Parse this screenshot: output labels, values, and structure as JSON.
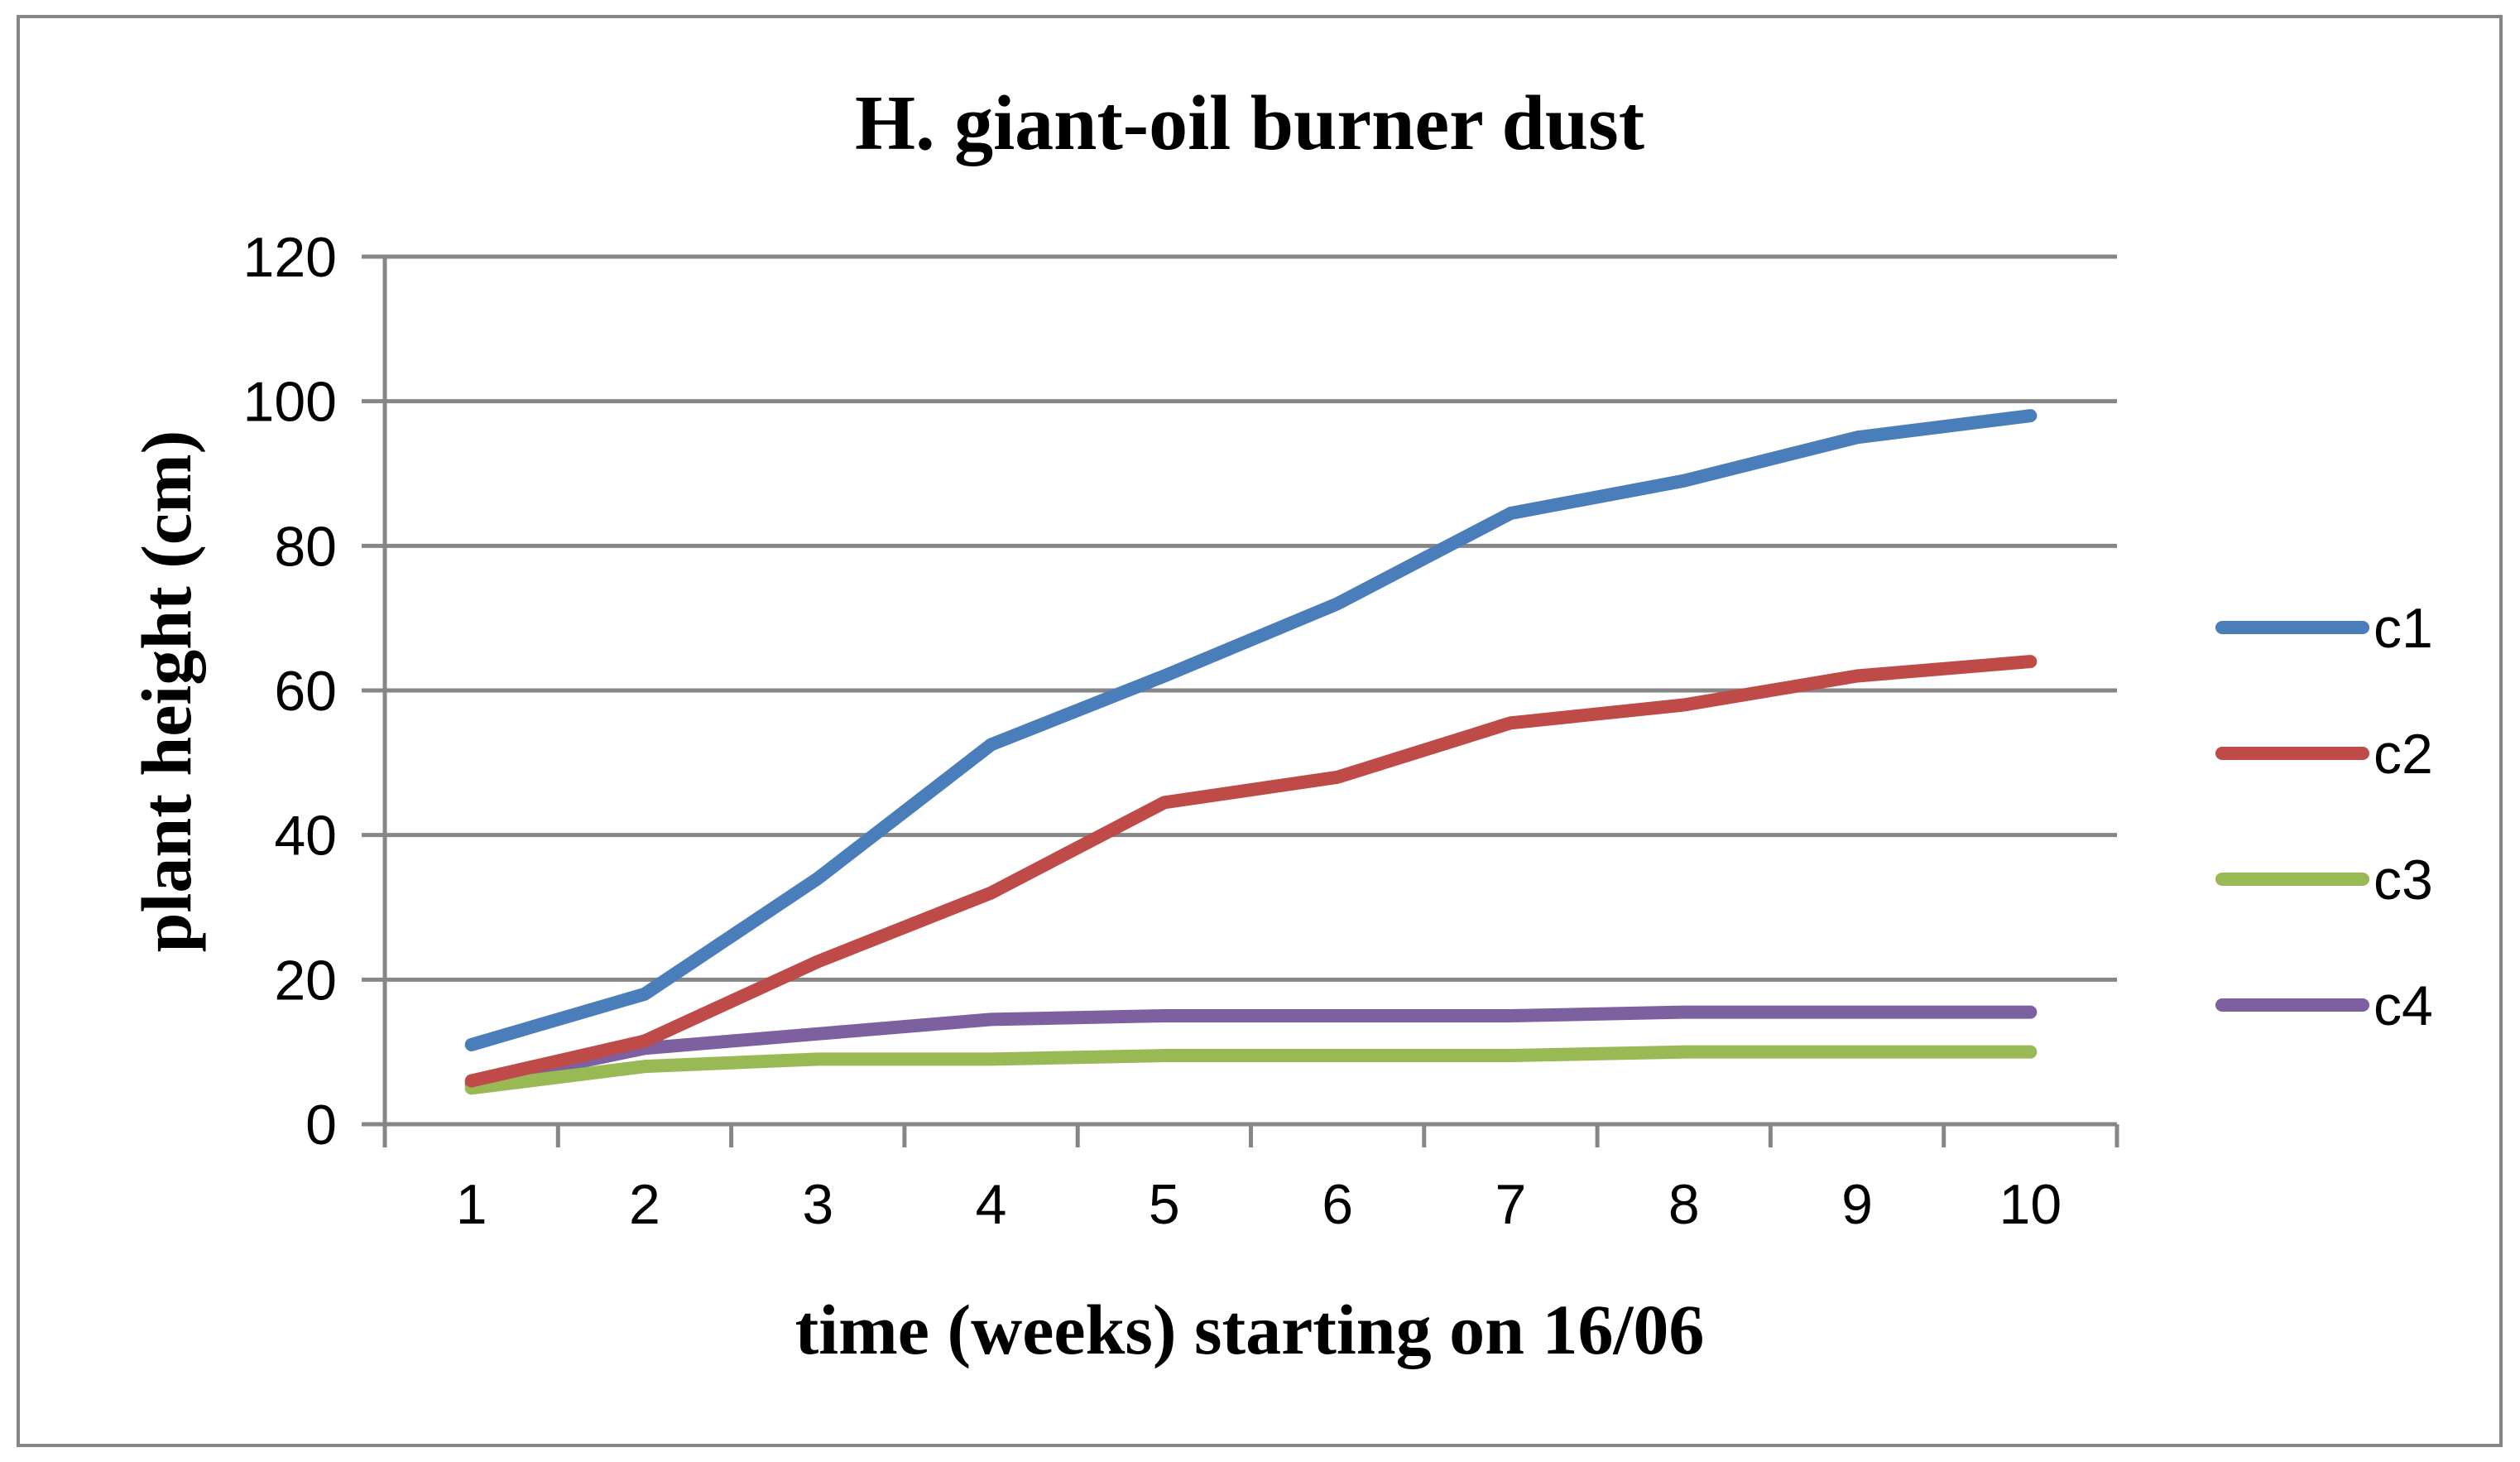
{
  "chart_data": {
    "type": "line",
    "title": "H. giant-oil burner dust",
    "xlabel": "time (weeks) starting on 16/06",
    "ylabel": "plant height (cm)",
    "categories": [
      "1",
      "2",
      "3",
      "4",
      "5",
      "6",
      "7",
      "8",
      "9",
      "10"
    ],
    "ylim": [
      0,
      120
    ],
    "yticks": [
      0,
      20,
      40,
      60,
      80,
      100,
      120
    ],
    "grid": true,
    "legend_position": "right",
    "series": [
      {
        "name": "c1",
        "color": "#4a7ebb",
        "values": [
          11,
          18,
          34,
          52.5,
          62,
          72,
          84.5,
          89,
          95,
          98
        ]
      },
      {
        "name": "c2",
        "color": "#be4b48",
        "values": [
          6,
          11.5,
          22.5,
          32,
          44.5,
          48,
          55.5,
          58,
          62,
          64
        ]
      },
      {
        "name": "c3",
        "color": "#98b954",
        "values": [
          5,
          8,
          9,
          9,
          9.5,
          9.5,
          9.5,
          10,
          10,
          10
        ]
      },
      {
        "name": "c4",
        "color": "#7d60a0",
        "values": [
          5.5,
          10.5,
          12.5,
          14.5,
          15,
          15,
          15,
          15.5,
          15.5,
          15.5
        ]
      }
    ]
  }
}
